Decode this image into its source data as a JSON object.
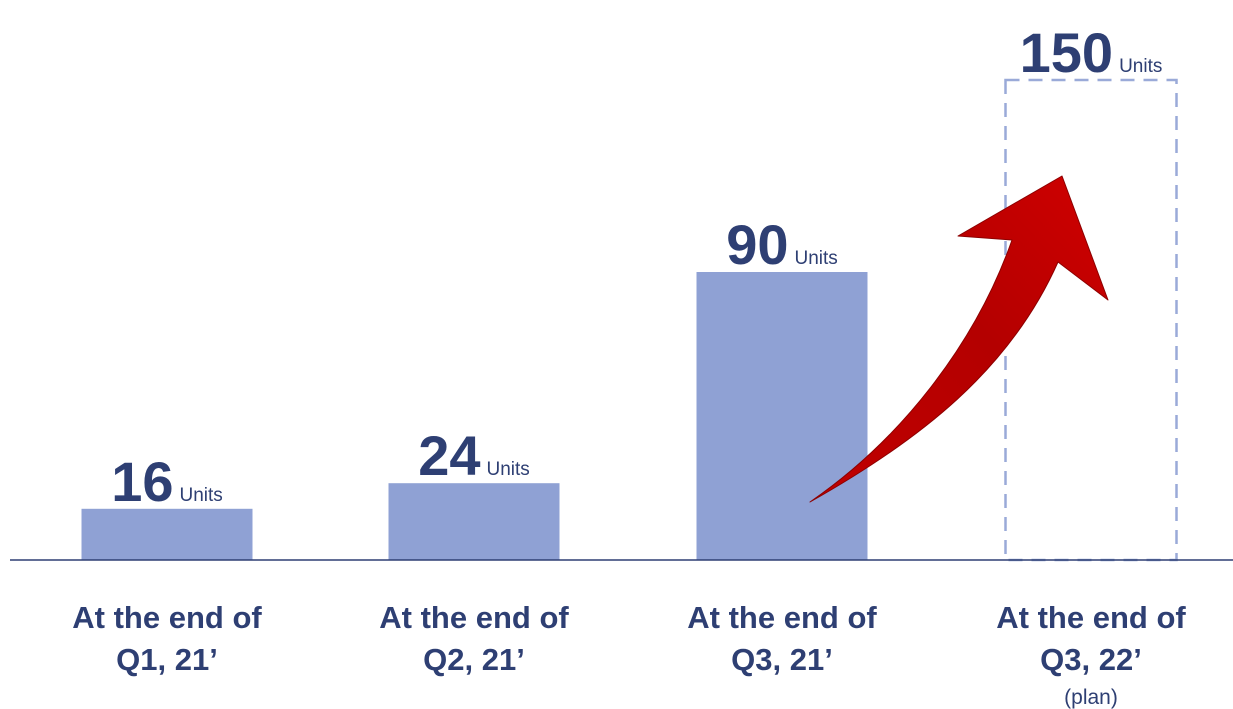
{
  "chart_data": {
    "type": "bar",
    "categories": [
      [
        "At the end of",
        "Q1, 21’"
      ],
      [
        "At the end of",
        "Q2, 21’"
      ],
      [
        "At the end of",
        "Q3, 21’"
      ],
      [
        "At the end of",
        "Q3, 22’"
      ]
    ],
    "category_notes": [
      "",
      "",
      "",
      "(plan)"
    ],
    "values": [
      16,
      24,
      90,
      150
    ],
    "unit": "Units",
    "planned": [
      false,
      false,
      false,
      true
    ],
    "ylim": [
      0,
      180
    ],
    "grid": false,
    "legend": "none",
    "colors": {
      "bar": "#8fa1d4",
      "planned_outline": "#9aaad8",
      "text": "#2e3f73",
      "axis": "#2e3f73",
      "arrow": "#c00000",
      "arrow_dark": "#8c0000"
    },
    "annotations": [
      {
        "type": "growth-arrow",
        "from_category": 2,
        "to_category": 3
      }
    ]
  }
}
